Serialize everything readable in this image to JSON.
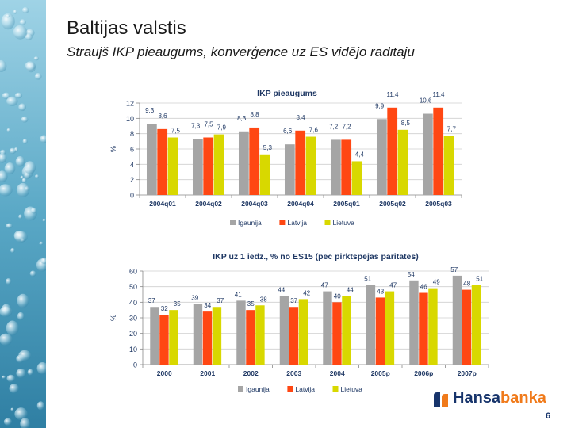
{
  "title": "Baltijas valstis",
  "subtitle": "Straujš IKP pieaugums, konverģence uz ES vidējo rādītāju",
  "page_number": "6",
  "logo": {
    "part1": "Hansa",
    "part2": "banka"
  },
  "colors": {
    "igaunija": "#a5a5a5",
    "latvija": "#ff4713",
    "lietuva": "#d8d800",
    "grid": "#cfcfcf",
    "axis": "#888888",
    "label": "#1f3864",
    "brand_blue": "#17346b",
    "brand_orange": "#f07a1a"
  },
  "chart_data": [
    {
      "type": "bar",
      "title": "IKP pieaugums",
      "ylabel": "%",
      "xlabel": "",
      "ylim": [
        0,
        12
      ],
      "yticks": [
        0,
        2,
        4,
        6,
        8,
        10,
        12
      ],
      "categories": [
        "2004q01",
        "2004q02",
        "2004q03",
        "2004q04",
        "2005q01",
        "2005q02",
        "2005q03"
      ],
      "series": [
        {
          "name": "Igaunija",
          "values": [
            9.3,
            7.3,
            8.3,
            6.6,
            7.2,
            9.9,
            10.6
          ],
          "labels": [
            "9,3",
            "7,3",
            "8,3",
            "6,6",
            "7,2",
            "9,9",
            "10,6"
          ]
        },
        {
          "name": "Latvija",
          "values": [
            8.6,
            7.5,
            8.8,
            8.4,
            7.2,
            11.4,
            11.4
          ],
          "labels": [
            "8,6",
            "7,5",
            "8,8",
            "8,4",
            "7,2",
            "11,4",
            "11,4"
          ]
        },
        {
          "name": "Lietuva",
          "values": [
            7.5,
            7.9,
            5.3,
            7.6,
            4.4,
            8.5,
            7.7
          ],
          "labels": [
            "7,5",
            "7,9",
            "5,3",
            "7,6",
            "4,4",
            "8,5",
            "7,7"
          ]
        }
      ],
      "legend_position": "bottom",
      "grid": true
    },
    {
      "type": "bar",
      "title": "IKP uz 1 iedz., % no ES15 (pēc pirktspējas paritātes)",
      "ylabel": "%",
      "xlabel": "",
      "ylim": [
        0,
        60
      ],
      "yticks": [
        0,
        10,
        20,
        30,
        40,
        50,
        60
      ],
      "categories": [
        "2000",
        "2001",
        "2002",
        "2003",
        "2004",
        "2005p",
        "2006p",
        "2007p"
      ],
      "series": [
        {
          "name": "Igaunija",
          "values": [
            37,
            39,
            41,
            44,
            47,
            51,
            54,
            57
          ],
          "labels": [
            "37",
            "39",
            "41",
            "44",
            "47",
            "51",
            "54",
            "57"
          ]
        },
        {
          "name": "Latvija",
          "values": [
            32,
            34,
            35,
            37,
            40,
            43,
            46,
            48
          ],
          "labels": [
            "32",
            "34",
            "35",
            "37",
            "40",
            "43",
            "46",
            "48"
          ]
        },
        {
          "name": "Lietuva",
          "values": [
            35,
            37,
            38,
            42,
            44,
            47,
            49,
            51
          ],
          "labels": [
            "35",
            "37",
            "38",
            "42",
            "44",
            "47",
            "49",
            "51"
          ]
        }
      ],
      "legend_position": "bottom",
      "grid": true
    }
  ]
}
